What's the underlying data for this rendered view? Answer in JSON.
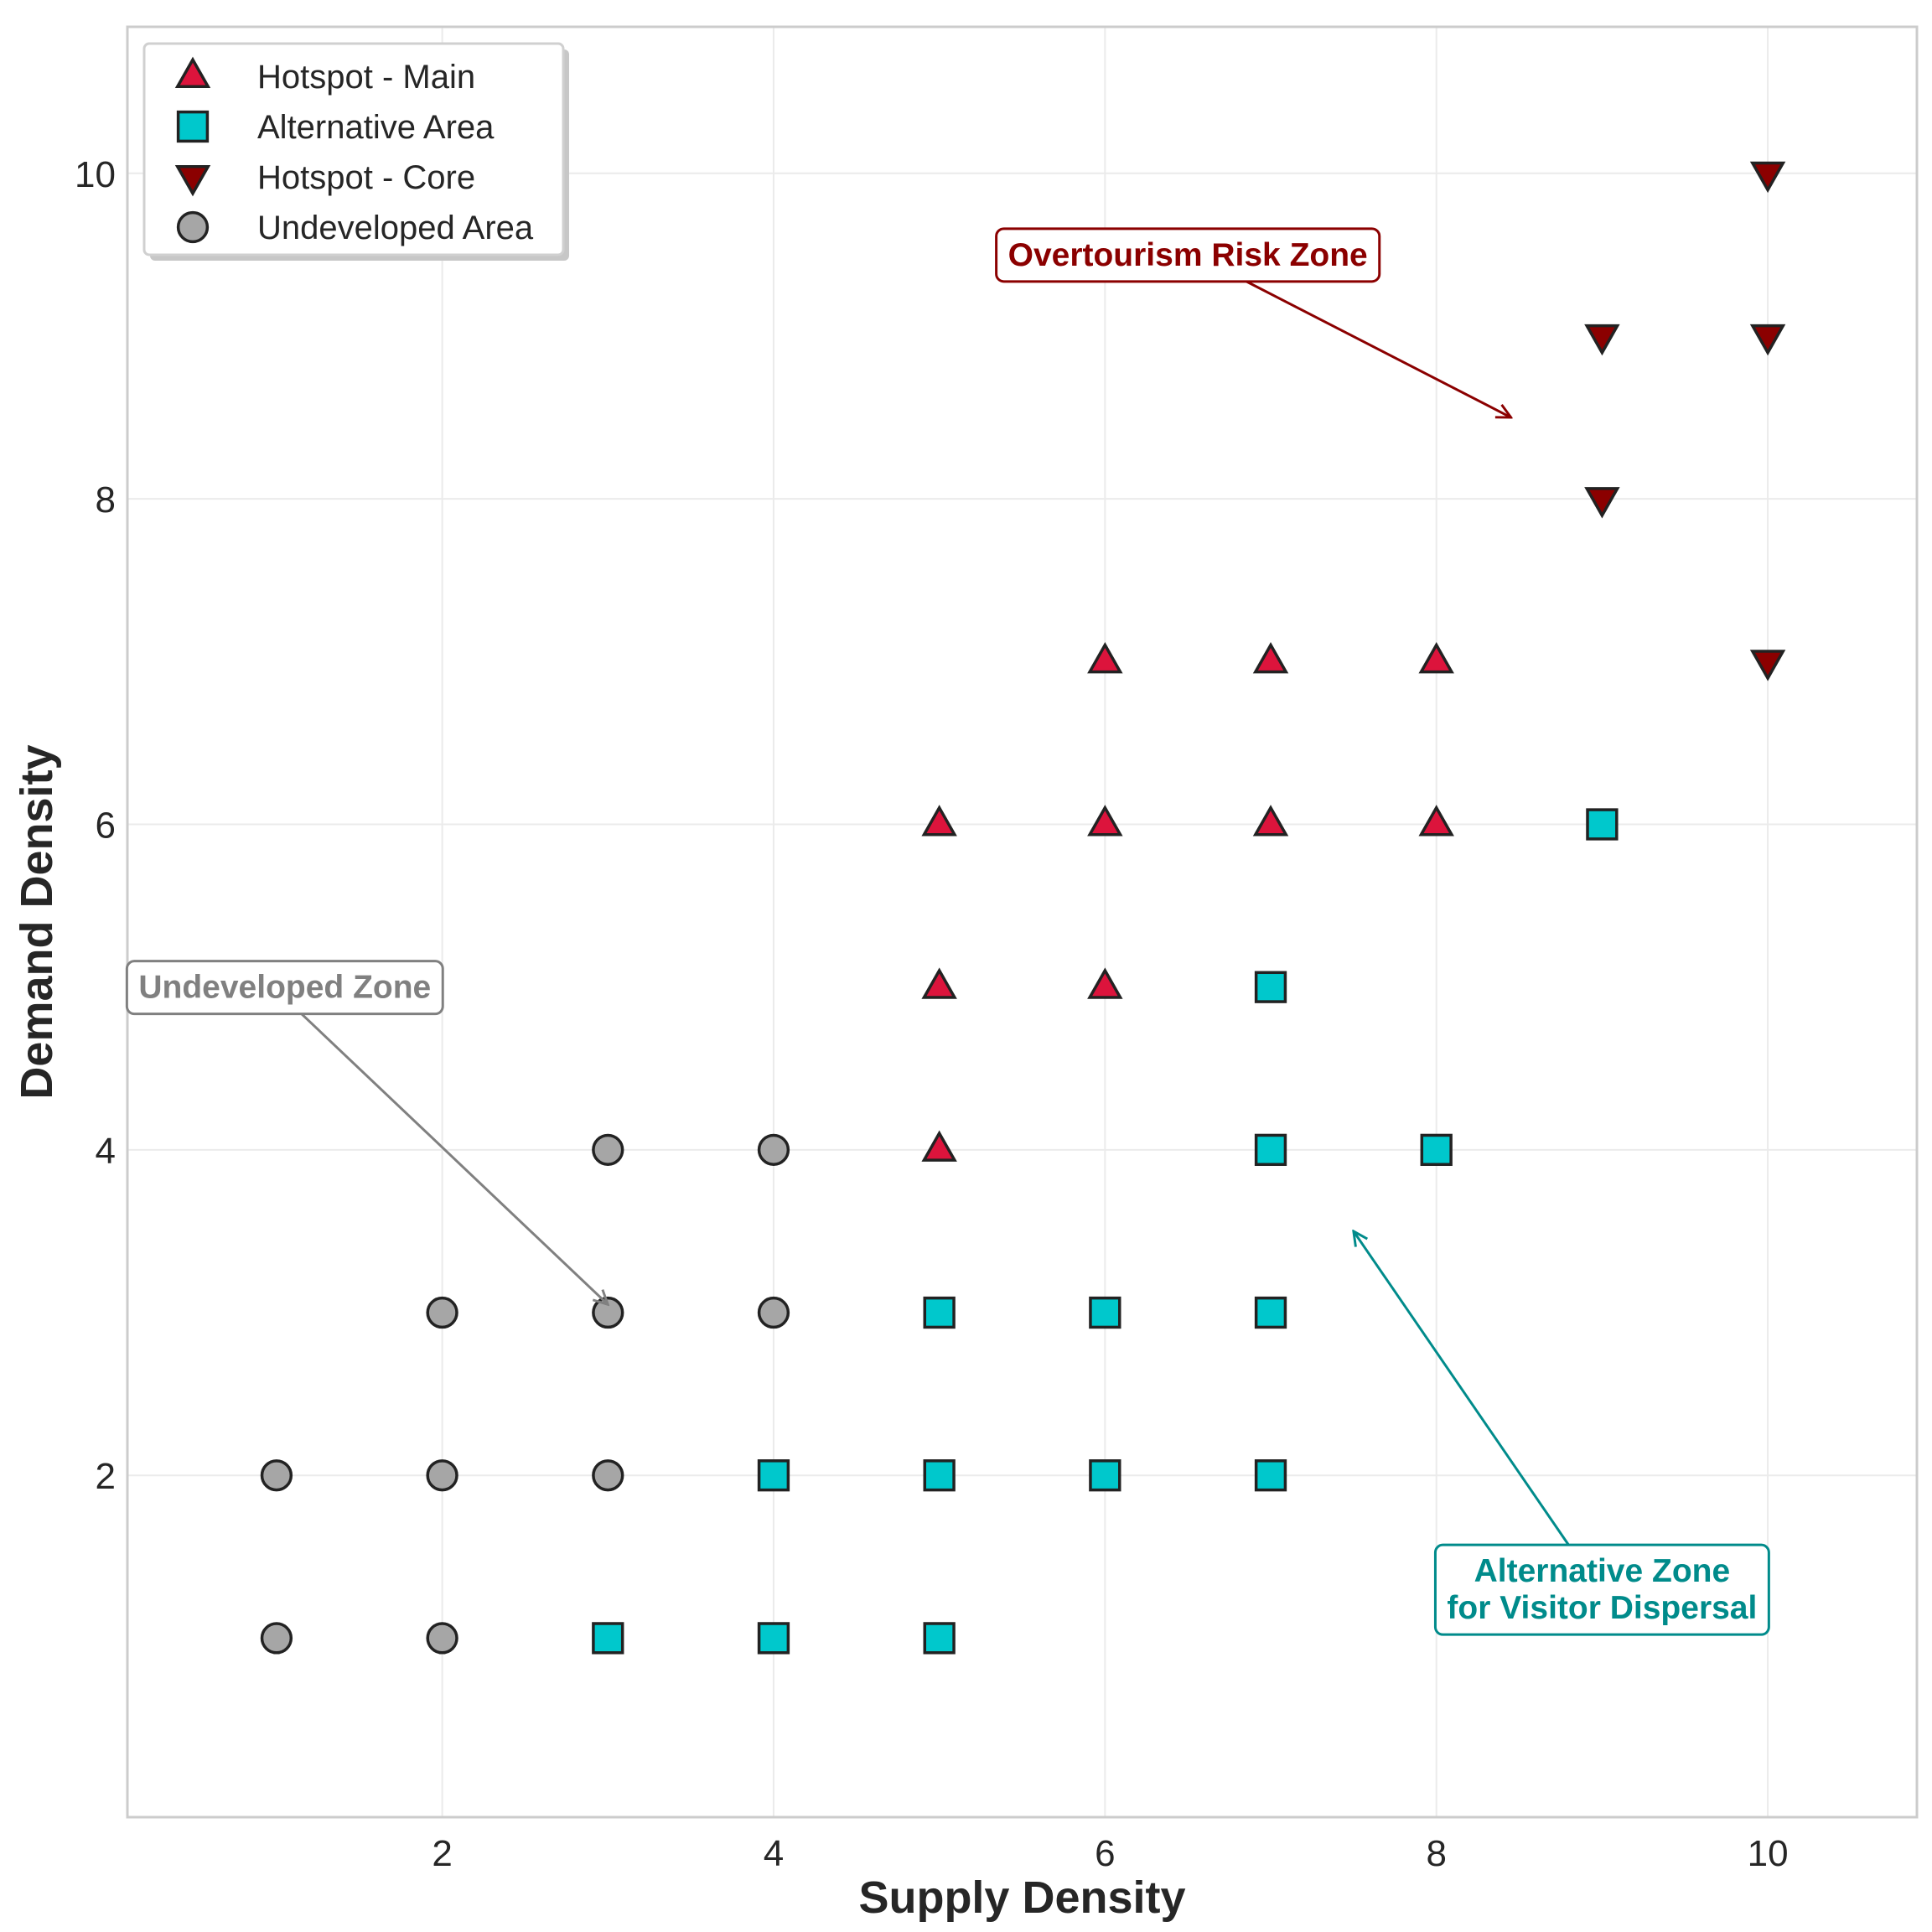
{
  "chart_data": {
    "type": "scatter",
    "title": "",
    "xlabel": "Supply Density",
    "ylabel": "Demand Density",
    "xlim": [
      0.1,
      10.9
    ],
    "ylim": [
      -0.1,
      10.9
    ],
    "xticks": [
      2,
      4,
      6,
      8,
      10
    ],
    "yticks": [
      2,
      4,
      6,
      8,
      10
    ],
    "grid": true,
    "legend_position": "top-left",
    "colors": {
      "hotspot_main": "#dc143c",
      "alternative": "#00c8cc",
      "hotspot_core": "#8b0000",
      "undeveloped": "#a6a6a6",
      "overtourism_annot": "#8b0000",
      "undeveloped_annot": "#808080",
      "alternative_annot": "#008b8b",
      "grid": "#ebebeb",
      "frame": "#cccccc"
    },
    "series": [
      {
        "name": "Hotspot - Main",
        "marker": "triangle-up",
        "color": "#dc143c",
        "points": [
          {
            "x": 5,
            "y": 4
          },
          {
            "x": 5,
            "y": 5
          },
          {
            "x": 5,
            "y": 6
          },
          {
            "x": 6,
            "y": 5
          },
          {
            "x": 6,
            "y": 6
          },
          {
            "x": 6,
            "y": 7
          },
          {
            "x": 7,
            "y": 6
          },
          {
            "x": 7,
            "y": 7
          },
          {
            "x": 8,
            "y": 6
          },
          {
            "x": 8,
            "y": 7
          }
        ]
      },
      {
        "name": "Alternative Area",
        "marker": "square",
        "color": "#00c8cc",
        "points": [
          {
            "x": 3,
            "y": 1
          },
          {
            "x": 4,
            "y": 1
          },
          {
            "x": 5,
            "y": 1
          },
          {
            "x": 4,
            "y": 2
          },
          {
            "x": 5,
            "y": 2
          },
          {
            "x": 6,
            "y": 2
          },
          {
            "x": 7,
            "y": 2
          },
          {
            "x": 5,
            "y": 3
          },
          {
            "x": 6,
            "y": 3
          },
          {
            "x": 7,
            "y": 3
          },
          {
            "x": 7,
            "y": 4
          },
          {
            "x": 8,
            "y": 4
          },
          {
            "x": 7,
            "y": 5
          },
          {
            "x": 9,
            "y": 6
          }
        ]
      },
      {
        "name": "Hotspot - Core",
        "marker": "triangle-down",
        "color": "#8b0000",
        "points": [
          {
            "x": 9,
            "y": 8
          },
          {
            "x": 9,
            "y": 9
          },
          {
            "x": 10,
            "y": 7
          },
          {
            "x": 10,
            "y": 9
          },
          {
            "x": 10,
            "y": 10
          }
        ]
      },
      {
        "name": "Undeveloped Area",
        "marker": "circle",
        "color": "#a6a6a6",
        "points": [
          {
            "x": 1,
            "y": 1
          },
          {
            "x": 2,
            "y": 1
          },
          {
            "x": 1,
            "y": 2
          },
          {
            "x": 2,
            "y": 2
          },
          {
            "x": 3,
            "y": 2
          },
          {
            "x": 2,
            "y": 3
          },
          {
            "x": 3,
            "y": 3
          },
          {
            "x": 4,
            "y": 3
          },
          {
            "x": 3,
            "y": 4
          },
          {
            "x": 4,
            "y": 4
          }
        ]
      }
    ],
    "annotations": [
      {
        "key": "overtourism",
        "lines": [
          "Overtourism Risk Zone"
        ],
        "text_at": [
          6.5,
          9.5
        ],
        "arrow_to": [
          8.45,
          8.5
        ],
        "color": "#8b0000"
      },
      {
        "key": "undeveloped",
        "lines": [
          "Undeveloped Zone"
        ],
        "text_at": [
          1.05,
          5.0
        ],
        "arrow_to": [
          3.0,
          3.05
        ],
        "color": "#808080"
      },
      {
        "key": "alternative",
        "lines": [
          "Alternative Zone",
          "for Visitor Dispersal"
        ],
        "text_at": [
          9.0,
          1.3
        ],
        "arrow_to": [
          7.5,
          3.5
        ],
        "color": "#008b8b"
      }
    ]
  }
}
